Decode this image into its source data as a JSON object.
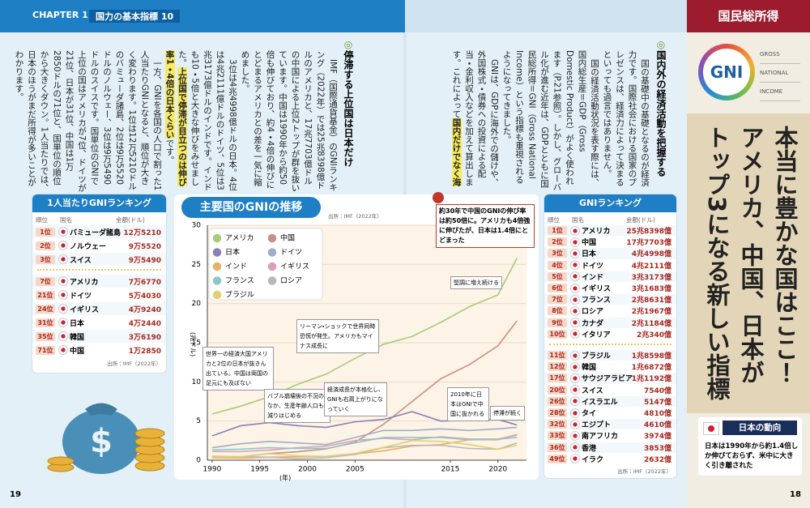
{
  "header": {
    "chapter": "CHAPTER 1",
    "section": "国力の基本指標 10",
    "tab": "国民総所得"
  },
  "page_numbers": [
    "19",
    "18"
  ],
  "headline": [
    "本当に豊かな国はここ！",
    "アメリカ、中国、日本が",
    "トップ3になる新しい指標"
  ],
  "logo": {
    "mark": "GNI",
    "words": [
      "GROSS",
      "NATIONAL",
      "INCOME"
    ]
  },
  "articles": [
    {
      "heading": "国内外の経済活動を把握する",
      "paragraphs": [
        [
          "国の基礎中の基礎となるのが経済力です。国際社会における国家のプレゼンスは、経済力によって決まるといっても過言ではありません。"
        ],
        [
          "国の経済活動状況を表す際には、国内総生産＝GDP（Gross Domestic Product）がよく使われます（P.21参照）。しかし、グローバル化が進む近年は、GDPとともに国民総所得＝GNI（Gross National Income）という指標も重視されるようになってきました。"
        ],
        [
          "GNIは、GDPに海外での儲けや、外国株式・債券への投資による配当・金利収入などを加えて算出します。これによって",
          "国内だけでなく海外を合わせた経済活動の規模を把握できる",
          "のです。"
        ]
      ]
    },
    {
      "heading": "停滞する上位国は日本だけ",
      "paragraphs": [
        [
          "IMF（国際通貨基金）のGNIランキング（2022年）では25兆8398億ドルのアメリカと、17兆7703億ドルの中国による上位2トップが群を抜いています。中国は1990年から約50倍も伸びており、約4・4倍の伸びにとどまるアメリカとの差を一気に縮めました。"
        ],
        [
          "3位は4兆4998億ドルの日本。4位は4兆2111億ドルのドイツ、5位は3兆3173億ドルのインドです。インドも10・5倍と大きな伸びをみせました。",
          "上位国で停滞が目立つのは伸び率1・4倍の日本くらい",
          "です。"
        ],
        [
          "一方、GNIを各国の人口で割った1人当たりGNIとなると、順位が大きく変わります。1位は12万5210ドルのバミューダ諸島、2位は9万5520ドルのノルウェー、3位は9万5490ドルのスイスです。国単位のGNIで上位の国はアメリカが7位、ドイツが21位、日本が31位、中国は1万2850ドルの71位と、国単位の順位から大きくダウン。1人当たりでは、日本のほうがまだ所得が多いことがわかります。"
        ]
      ]
    }
  ],
  "per_capita_ranking": {
    "title": "1人当たりGNIランキング",
    "columns": [
      "順位",
      "国名",
      "金額(ドル)"
    ],
    "groups": [
      [
        [
          "1位",
          "バミューダ諸島",
          "12万5210"
        ],
        [
          "2位",
          "ノルウェー",
          "9万5520"
        ],
        [
          "3位",
          "スイス",
          "9万5490"
        ]
      ],
      [
        [
          "7位",
          "アメリカ",
          "7万6770"
        ],
        [
          "21位",
          "ドイツ",
          "5万4030"
        ],
        [
          "24位",
          "イギリス",
          "4万9240"
        ],
        [
          "31位",
          "日本",
          "4万2440"
        ],
        [
          "35位",
          "韓国",
          "3万6190"
        ],
        [
          "71位",
          "中国",
          "1万2850"
        ]
      ]
    ],
    "source": "出所：IMF（2022年）"
  },
  "gni_ranking": {
    "title": "GNIランキング",
    "columns": [
      "順位",
      "国名",
      "金額(ドル)"
    ],
    "groups": [
      [
        [
          "1位",
          "アメリカ",
          "25兆8398億"
        ],
        [
          "2位",
          "中国",
          "17兆7703億"
        ],
        [
          "3位",
          "日本",
          "4兆4998億"
        ],
        [
          "4位",
          "ドイツ",
          "4兆2111億"
        ],
        [
          "5位",
          "インド",
          "3兆3173億"
        ],
        [
          "6位",
          "イギリス",
          "3兆1683億"
        ],
        [
          "7位",
          "フランス",
          "2兆8631億"
        ],
        [
          "8位",
          "ロシア",
          "2兆1967億"
        ],
        [
          "9位",
          "カナダ",
          "2兆1184億"
        ],
        [
          "10位",
          "イタリア",
          "2兆340億"
        ]
      ],
      [
        [
          "11位",
          "ブラジル",
          "1兆8598億"
        ],
        [
          "12位",
          "韓国",
          "1兆6872億"
        ],
        [
          "17位",
          "サウジアラビア",
          "1兆1192億"
        ],
        [
          "20位",
          "スイス",
          "7540億"
        ],
        [
          "26位",
          "イスラエル",
          "5147億"
        ],
        [
          "28位",
          "タイ",
          "4810億"
        ],
        [
          "32位",
          "エジプト",
          "4610億"
        ],
        [
          "33位",
          "南アフリカ",
          "3974億"
        ],
        [
          "36位",
          "香港",
          "3853億"
        ],
        [
          "49位",
          "イラク",
          "2632億"
        ]
      ]
    ],
    "source": "出所：IMF（2022年）"
  },
  "japan_trend": {
    "title": "日本の動向",
    "text": "日本は1990年から約1.4倍しか伸びておらず、米中に大きく引き離された"
  },
  "chart_data": {
    "type": "line",
    "title": "主要国のGNIの推移",
    "source": "出所：IMF（2022年）",
    "y_label": "(兆ドル)",
    "x_label": "(年)",
    "x": [
      1990,
      1993,
      1996,
      1999,
      2002,
      2005,
      2008,
      2011,
      2014,
      2017,
      2020,
      2022
    ],
    "xlim": [
      1989.5,
      2023
    ],
    "xticks": [
      1990,
      1995,
      2000,
      2005,
      2015,
      2020
    ],
    "ylim": [
      0,
      30
    ],
    "yticks": [
      0,
      5,
      10,
      15,
      20,
      25,
      30
    ],
    "grid": true,
    "series": [
      {
        "name": "アメリカ",
        "color": "#a9cc78",
        "values": [
          5.9,
          6.9,
          8.1,
          9.7,
          11.0,
          13.0,
          14.8,
          15.8,
          17.6,
          19.6,
          21.1,
          25.8
        ]
      },
      {
        "name": "中国",
        "color": "#c98f80",
        "values": [
          0.36,
          0.44,
          0.85,
          1.08,
          1.45,
          2.3,
          4.6,
          7.5,
          10.4,
          12.2,
          14.6,
          17.8
        ]
      },
      {
        "name": "日本",
        "color": "#8a80b8",
        "values": [
          3.1,
          4.4,
          4.8,
          4.4,
          4.2,
          4.9,
          5.2,
          6.2,
          5.0,
          5.1,
          5.2,
          4.5
        ]
      },
      {
        "name": "ドイツ",
        "color": "#9bb0c8",
        "values": [
          1.6,
          2.1,
          2.4,
          2.2,
          2.0,
          2.9,
          3.8,
          3.8,
          4.0,
          3.8,
          4.0,
          4.2
        ]
      },
      {
        "name": "インド",
        "color": "#e8b06a",
        "values": [
          0.32,
          0.28,
          0.38,
          0.45,
          0.5,
          0.8,
          1.2,
          1.8,
          2.0,
          2.6,
          2.6,
          3.3
        ]
      },
      {
        "name": "イギリス",
        "color": "#d9a0b8",
        "values": [
          1.1,
          1.1,
          1.3,
          1.6,
          1.8,
          2.5,
          2.8,
          2.6,
          3.0,
          2.7,
          2.7,
          3.2
        ]
      },
      {
        "name": "フランス",
        "color": "#8fc7c9",
        "values": [
          1.3,
          1.4,
          1.6,
          1.5,
          1.5,
          2.2,
          2.9,
          2.9,
          2.9,
          2.6,
          2.7,
          2.9
        ]
      },
      {
        "name": "ロシア",
        "color": "#b8b8b8",
        "values": [
          0.5,
          0.45,
          0.38,
          0.19,
          0.33,
          0.74,
          1.6,
          1.9,
          1.9,
          1.5,
          1.4,
          2.2
        ]
      },
      {
        "name": "ブラジル",
        "color": "#e3d070",
        "values": [
          0.45,
          0.42,
          0.83,
          0.57,
          0.49,
          0.86,
          1.65,
          2.5,
          2.4,
          2.0,
          1.4,
          1.9
        ]
      }
    ],
    "annotations": [
      "世界一の経済大国アメリカと2位の日本が抜きん出ている。中国は両国の足元にも及ばない",
      "バブル崩壊後の不況のなか、生産年齢人口も減りはじめる",
      "リーマン・ショックで世界同時恐慌が発生。アメリカもマイナス成長に",
      "経済成長が本格化し、GNIも右肩上がりになっていく",
      "2010年に日本はGNIで中国に抜かれる",
      "停滞が続く",
      "堅調に増え続ける",
      "約30年で中国のGNIの伸び率は約50倍に。アメリカも4倍強に伸びたが、日本は1.4倍にとどまった"
    ]
  }
}
